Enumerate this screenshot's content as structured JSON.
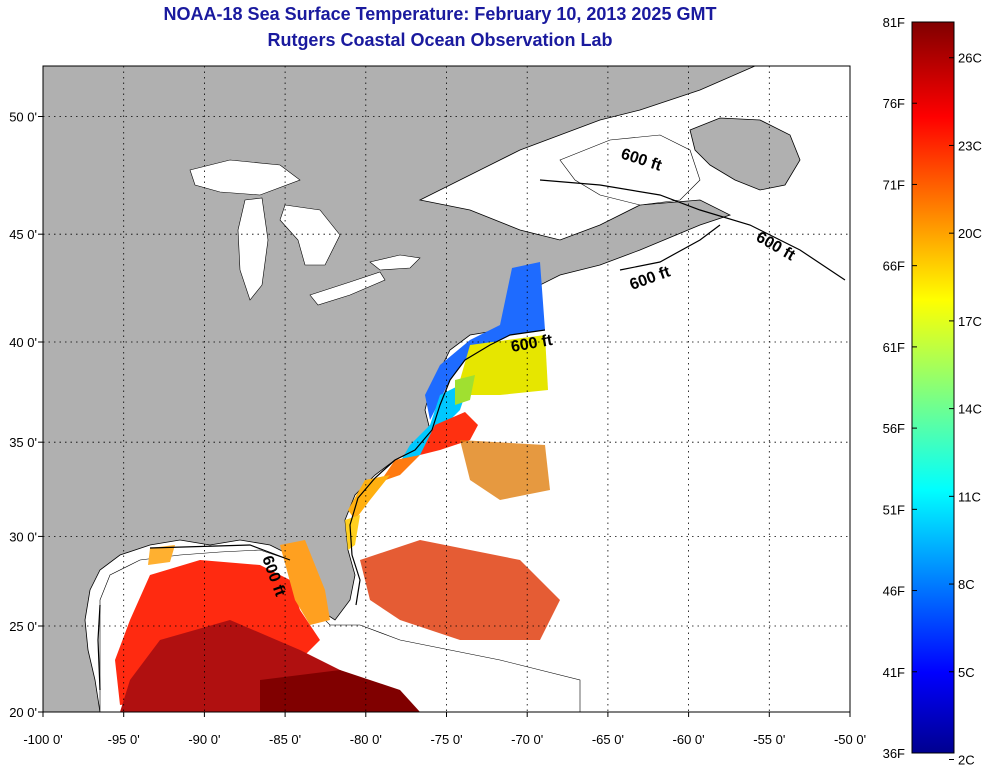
{
  "header": {
    "title": "NOAA-18 Sea Surface Temperature:  February 10, 2013 2025 GMT",
    "subtitle": "Rutgers Coastal Ocean Observation Lab"
  },
  "map": {
    "lon_range": [
      -100,
      -50
    ],
    "lat_range": [
      20,
      52
    ],
    "x_ticks": [
      "-100 0'",
      "-95 0'",
      "-90 0'",
      "-85 0'",
      "-80 0'",
      "-75 0'",
      "-70 0'",
      "-65 0'",
      "-60 0'",
      "-55 0'",
      "-50 0'"
    ],
    "y_ticks": [
      "50 0'",
      "45 0'",
      "40 0'",
      "35 0'",
      "30 0'",
      "25 0'",
      "20 0'"
    ],
    "y_tick_values": [
      50,
      45,
      40,
      35,
      30,
      25,
      20
    ],
    "grid": "dotted",
    "land_color": "#b0b0b0",
    "depth_contour_labels": [
      "600 ft",
      "600 ft",
      "600 ft",
      "600 ft",
      "600 ft"
    ]
  },
  "colorbar": {
    "fahrenheit_labels": [
      "81F",
      "76F",
      "71F",
      "66F",
      "61F",
      "56F",
      "51F",
      "46F",
      "41F",
      "36F"
    ],
    "celsius_labels": [
      "26C",
      "23C",
      "20C",
      "17C",
      "14C",
      "11C",
      "8C",
      "5C",
      "2C"
    ],
    "colormap": "jet"
  }
}
